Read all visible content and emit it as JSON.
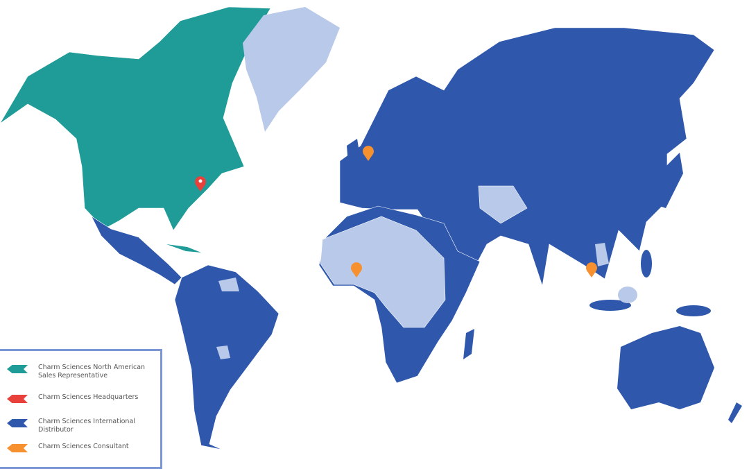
{
  "colors": {
    "north_american_rep": "#1f9b98",
    "headquarters": "#e8403a",
    "international_distributor": "#2f58ad",
    "consultant": "#f7902f",
    "no_coverage": "#b9c9e9",
    "legend_border": "#7b96d4"
  },
  "legend": {
    "items": [
      {
        "label": "Charm Sciences North American Sales Representative",
        "color": "#1f9b98",
        "icon": "flag-marker-icon"
      },
      {
        "label": "Charm Sciences Headquarters",
        "color": "#e8403a",
        "icon": "flag-marker-icon"
      },
      {
        "label": "Charm Sciences International Distributor",
        "color": "#2f58ad",
        "icon": "flag-marker-icon"
      },
      {
        "label": "Charm Sciences Consultant",
        "color": "#f7902f",
        "icon": "flag-marker-icon"
      }
    ]
  },
  "pins": [
    {
      "type": "headquarters",
      "location": "Northeastern United States",
      "color": "#e8403a"
    },
    {
      "type": "consultant",
      "location": "Netherlands",
      "color": "#f7902f"
    },
    {
      "type": "consultant",
      "location": "West Africa",
      "color": "#f7902f"
    },
    {
      "type": "consultant",
      "location": "Thailand",
      "color": "#f7902f"
    }
  ]
}
